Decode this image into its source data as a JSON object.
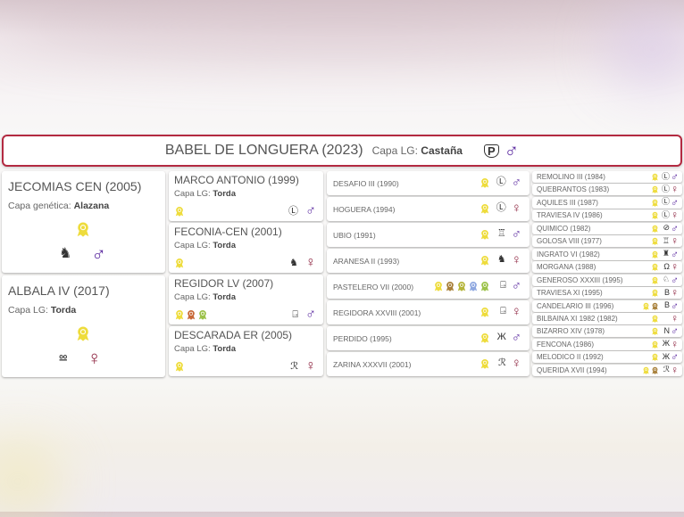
{
  "colors": {
    "male": "#5b2aa0",
    "female": "#8e2440",
    "border": "#b32a41",
    "medal_gold": "#eedc3c",
    "medal_brown": "#a8803a",
    "medal_olive": "#b5b53a",
    "medal_blue": "#8fa8e0",
    "medal_green": "#9cc24a",
    "medal_red": "#c86a3a"
  },
  "capa_lg_label": "Capa LG:",
  "capa_gen_label": "Capa genética:",
  "main": {
    "name": "BABEL DE LONGUERA (2023)",
    "capa": "Castaña",
    "brand": "P-shield",
    "sex": "male"
  },
  "gen1": [
    {
      "name": "JECOMIAS CEN (2005)",
      "capa_label": "Capa genética:",
      "capa": "Alazana",
      "medals": [
        "gold"
      ],
      "brand": "crown-horse",
      "sex": "male"
    },
    {
      "name": "ALBALA IV (2017)",
      "capa_label": "Capa LG:",
      "capa": "Torda",
      "medals": [
        "gold"
      ],
      "brand": "double-v",
      "sex": "female"
    }
  ],
  "gen2": [
    {
      "name": "MARCO ANTONIO (1999)",
      "capa": "Torda",
      "medals": [
        "gold"
      ],
      "brand": "circle-L",
      "sex": "male"
    },
    {
      "name": "FECONIA-CEN (2001)",
      "capa": "Torda",
      "medals": [
        "gold"
      ],
      "brand": "crown-horse",
      "sex": "female"
    },
    {
      "name": "REGIDOR LV (2007)",
      "capa": "Torda",
      "medals": [
        "gold",
        "red",
        "green"
      ],
      "brand": "JE",
      "sex": "male"
    },
    {
      "name": "DESCARADA ER (2005)",
      "capa": "Torda",
      "medals": [
        "gold"
      ],
      "brand": "TR",
      "sex": "female"
    }
  ],
  "gen3": [
    {
      "name": "DESAFIO III (1990)",
      "medals": [
        "gold"
      ],
      "brand": "circle-L",
      "sex": "male"
    },
    {
      "name": "HOGUERA (1994)",
      "medals": [
        "gold"
      ],
      "brand": "circle-L",
      "sex": "female"
    },
    {
      "name": "UBIO (1991)",
      "medals": [
        "gold"
      ],
      "brand": "bucket",
      "sex": "male"
    },
    {
      "name": "ARANESA II (1993)",
      "medals": [
        "gold"
      ],
      "brand": "crown-horse",
      "sex": "female"
    },
    {
      "name": "PASTELERO VII (2000)",
      "medals": [
        "gold",
        "brown",
        "olive",
        "blue",
        "green"
      ],
      "brand": "JE",
      "sex": "male"
    },
    {
      "name": "REGIDORA XXVIII (2001)",
      "medals": [
        "gold"
      ],
      "brand": "JE",
      "sex": "female"
    },
    {
      "name": "PERDIDO (1995)",
      "medals": [
        "gold"
      ],
      "brand": "crowned-M",
      "sex": "male"
    },
    {
      "name": "ZARINA XXXVII (2001)",
      "medals": [
        "gold"
      ],
      "brand": "TR",
      "sex": "female"
    }
  ],
  "gen4": [
    {
      "name": "REMOLINO III (1984)",
      "medals": [
        "gold"
      ],
      "brand": "circle-L",
      "sex": "male"
    },
    {
      "name": "QUEBRANTOS (1983)",
      "medals": [
        "gold"
      ],
      "brand": "circle-L",
      "sex": "female"
    },
    {
      "name": "AQUILES III (1987)",
      "medals": [
        "gold"
      ],
      "brand": "circle-L",
      "sex": "male"
    },
    {
      "name": "TRAVIESA IV (1986)",
      "medals": [
        "gold"
      ],
      "brand": "circle-L",
      "sex": "female"
    },
    {
      "name": "QUIMICO (1982)",
      "medals": [
        "gold"
      ],
      "brand": "circle-check",
      "sex": "male"
    },
    {
      "name": "GOLOSA VIII (1977)",
      "medals": [
        "gold"
      ],
      "brand": "bucket",
      "sex": "female"
    },
    {
      "name": "INGRATO VI (1982)",
      "medals": [
        "gold"
      ],
      "brand": "tower",
      "sex": "male"
    },
    {
      "name": "MORGANA (1988)",
      "medals": [
        "gold"
      ],
      "brand": "omega",
      "sex": "female"
    },
    {
      "name": "GENEROSO XXXIII (1995)",
      "medals": [
        "gold"
      ],
      "brand": "horse",
      "sex": "male"
    },
    {
      "name": "TRAVIESA XI (1995)",
      "medals": [
        "gold"
      ],
      "brand": "B",
      "sex": "female"
    },
    {
      "name": "CANDELARIO III (1996)",
      "medals": [
        "gold",
        "brown"
      ],
      "brand": "B",
      "sex": "male"
    },
    {
      "name": "BILBAINA XI 1982 (1982)",
      "medals": [
        "gold"
      ],
      "brand": "",
      "sex": "female"
    },
    {
      "name": "BIZARRO XIV (1978)",
      "medals": [
        "gold"
      ],
      "brand": "N",
      "sex": "male"
    },
    {
      "name": "FENCONA (1986)",
      "medals": [
        "gold"
      ],
      "brand": "crowned-M",
      "sex": "female"
    },
    {
      "name": "MELODICO II (1992)",
      "medals": [
        "gold"
      ],
      "brand": "crowned-M",
      "sex": "male"
    },
    {
      "name": "QUERIDA XVII (1994)",
      "medals": [
        "gold",
        "brown"
      ],
      "brand": "TR",
      "sex": "female"
    }
  ]
}
